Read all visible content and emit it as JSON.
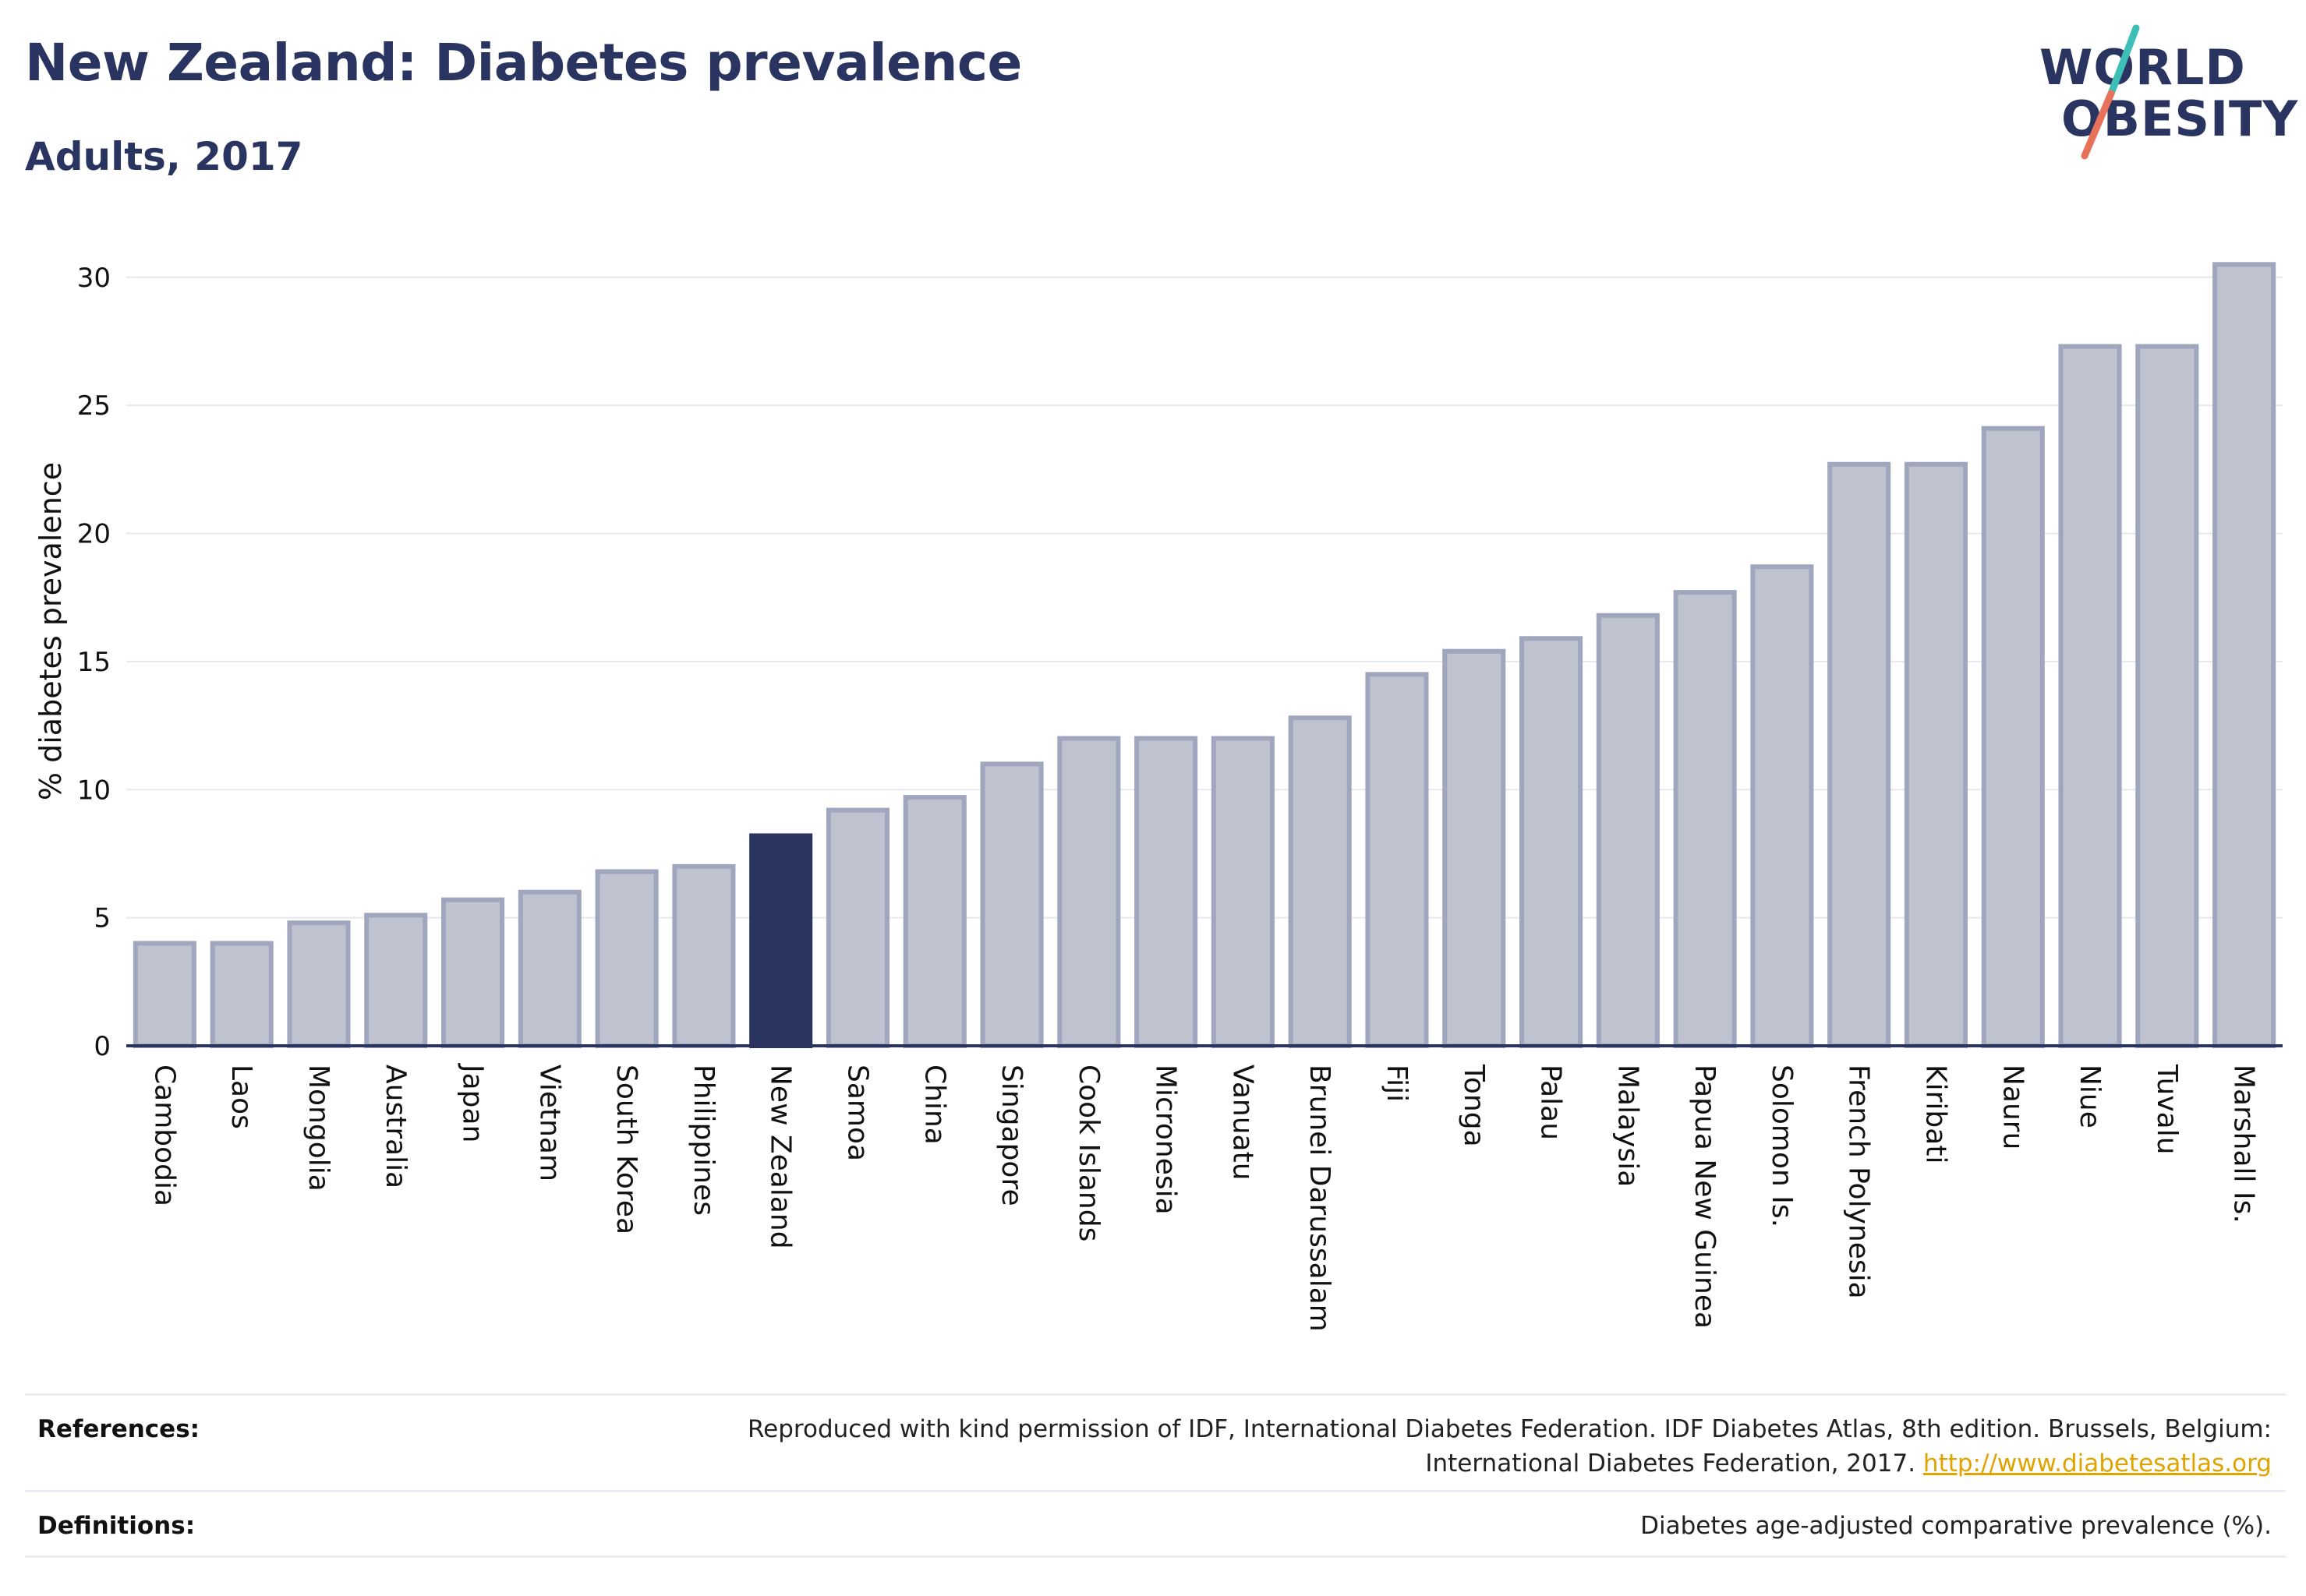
{
  "header": {
    "title": "New Zealand: Diabetes prevalence",
    "subtitle": "Adults, 2017"
  },
  "logo": {
    "line1": "WORLD",
    "line2": "OBESITY",
    "colors": {
      "text": "#2a3461",
      "slash_top": "#3dbfb8",
      "slash_bottom": "#e8715a"
    }
  },
  "chart_data": {
    "type": "bar",
    "ylabel": "% diabetes prevalence",
    "ylim": [
      0,
      32
    ],
    "yticks": [
      0,
      5,
      10,
      15,
      20,
      25,
      30
    ],
    "grid": true,
    "highlight": "New Zealand",
    "colors": {
      "bar": "#bfc3d0",
      "bar_border": "#a0a6bd",
      "highlight": "#2a3461",
      "grid": "#e6e8ef",
      "axis": "#2a3461"
    },
    "categories": [
      "Cambodia",
      "Laos",
      "Mongolia",
      "Australia",
      "Japan",
      "Vietnam",
      "South Korea",
      "Philippines",
      "New Zealand",
      "Samoa",
      "China",
      "Singapore",
      "Cook Islands",
      "Micronesia",
      "Vanuatu",
      "Brunei Darussalam",
      "Fiji",
      "Tonga",
      "Palau",
      "Malaysia",
      "Papua New Guinea",
      "Solomon Is.",
      "French Polynesia",
      "Kiribati",
      "Nauru",
      "Niue",
      "Tuvalu",
      "Marshall Is."
    ],
    "values": [
      4.0,
      4.0,
      4.8,
      5.1,
      5.7,
      6.0,
      6.8,
      7.0,
      8.2,
      9.2,
      9.7,
      11.0,
      12.0,
      12.0,
      12.0,
      12.8,
      14.5,
      15.4,
      15.9,
      16.8,
      17.7,
      18.7,
      22.7,
      22.7,
      24.1,
      27.3,
      27.3,
      30.5
    ]
  },
  "footer": {
    "references_label": "References:",
    "references_line1": "Reproduced with kind permission of IDF, International Diabetes Federation. IDF Diabetes Atlas, 8th edition. Brussels, Belgium:",
    "references_line2": "International Diabetes Federation, 2017.",
    "references_link": "http://www.diabetesatlas.org",
    "definitions_label": "Definitions:",
    "definitions_text": "Diabetes age-adjusted comparative prevalence (%)."
  }
}
